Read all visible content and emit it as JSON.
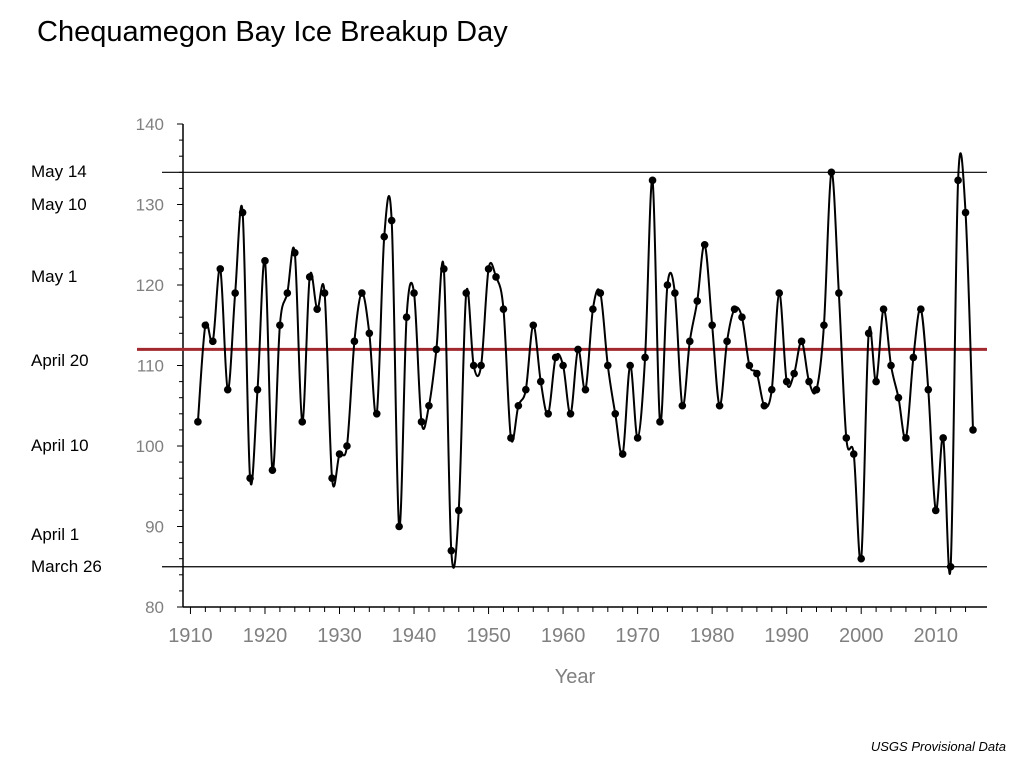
{
  "title": "Chequamegon Bay Ice Breakup Day",
  "source_note": "USGS Provisional Data",
  "chart_data": {
    "type": "line",
    "title": "Chequamegon Bay Ice Breakup Day",
    "xlabel": "Year",
    "ylabel": "",
    "xlim": [
      1909,
      2016
    ],
    "ylim": [
      80,
      140
    ],
    "x_ticks": [
      1910,
      1920,
      1930,
      1940,
      1950,
      1960,
      1970,
      1980,
      1990,
      2000,
      2010
    ],
    "y_ticks": [
      80,
      90,
      100,
      110,
      120,
      130,
      140
    ],
    "grid": false,
    "legend": "none",
    "series": [
      {
        "color": "#000000",
        "x": [
          1911,
          1912,
          1913,
          1914,
          1915,
          1916,
          1917,
          1918,
          1919,
          1920,
          1921,
          1922,
          1923,
          1924,
          1925,
          1926,
          1927,
          1928,
          1929,
          1930,
          1931,
          1932,
          1933,
          1934,
          1935,
          1936,
          1937,
          1938,
          1939,
          1940,
          1941,
          1942,
          1943,
          1944,
          1945,
          1946,
          1947,
          1948,
          1949,
          1950,
          1951,
          1952,
          1953,
          1954,
          1955,
          1956,
          1957,
          1958,
          1959,
          1960,
          1961,
          1962,
          1963,
          1964,
          1965,
          1966,
          1967,
          1968,
          1969,
          1970,
          1971,
          1972,
          1973,
          1974,
          1975,
          1976,
          1977,
          1978,
          1979,
          1980,
          1981,
          1982,
          1983,
          1984,
          1985,
          1986,
          1987,
          1988,
          1989,
          1990,
          1991,
          1992,
          1993,
          1994,
          1995,
          1996,
          1997,
          1998,
          1999,
          2000,
          2001,
          2002,
          2003,
          2004,
          2005,
          2006,
          2007,
          2008,
          2009,
          2010,
          2011,
          2012,
          2013,
          2014,
          2015
        ],
        "y": [
          103,
          115,
          113,
          122,
          107,
          119,
          129,
          96,
          107,
          123,
          97,
          115,
          119,
          124,
          103,
          121,
          117,
          119,
          96,
          99,
          100,
          113,
          119,
          114,
          104,
          126,
          128,
          90,
          116,
          119,
          103,
          105,
          112,
          122,
          87,
          92,
          119,
          110,
          110,
          122,
          121,
          117,
          101,
          105,
          107,
          115,
          108,
          104,
          111,
          110,
          104,
          112,
          107,
          117,
          119,
          110,
          104,
          99,
          110,
          101,
          111,
          133,
          103,
          120,
          119,
          105,
          113,
          118,
          125,
          115,
          105,
          113,
          117,
          116,
          110,
          109,
          105,
          107,
          119,
          108,
          109,
          113,
          108,
          107,
          115,
          134,
          119,
          101,
          99,
          86,
          114,
          108,
          117,
          110,
          106,
          101,
          111,
          117,
          107,
          92,
          101,
          85,
          133,
          129,
          102
        ]
      }
    ],
    "reference_lines": [
      {
        "y": 112,
        "color": "#a0282e",
        "label": ""
      },
      {
        "y": 134,
        "color": "#000000",
        "label": "May 14"
      },
      {
        "y": 85,
        "color": "#000000",
        "label": "March 26"
      }
    ],
    "date_labels": [
      {
        "y": 134,
        "text": "May 14"
      },
      {
        "y": 130,
        "text": "May 10"
      },
      {
        "y": 121,
        "text": "May 1"
      },
      {
        "y": 110.5,
        "text": "April 20"
      },
      {
        "y": 100,
        "text": "April 10"
      },
      {
        "y": 89,
        "text": "April 1"
      },
      {
        "y": 85,
        "text": "March 26"
      }
    ]
  }
}
